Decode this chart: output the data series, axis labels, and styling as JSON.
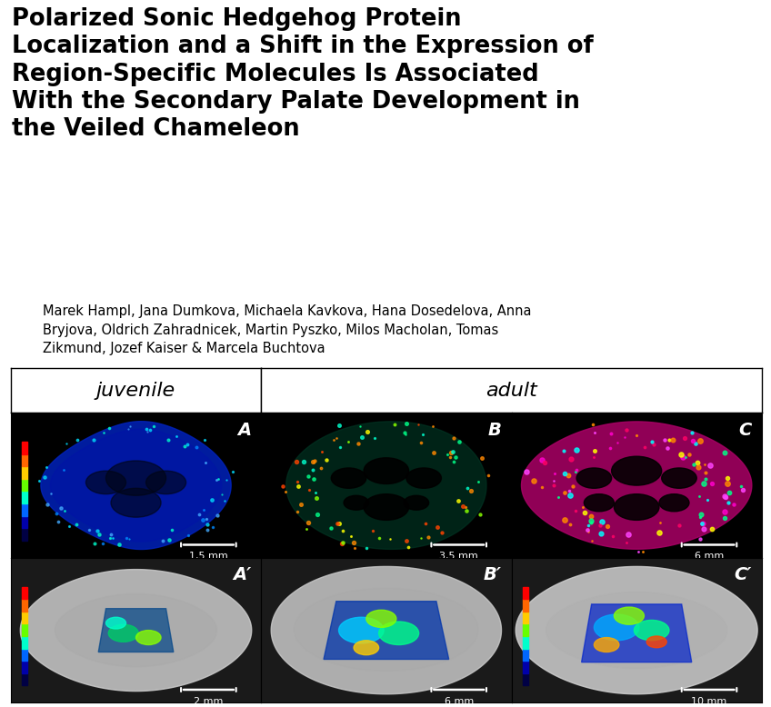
{
  "title_lines": [
    "Polarized Sonic Hedgehog Protein",
    "Localization and a Shift in the Expression of",
    "Region-Specific Molecules Is Associated",
    "With the Secondary Palate Development in",
    "the Veiled Chameleon"
  ],
  "authors_line1": "Marek Hampl, Jana Dumkova, Michaela Kavkova, Hana Dosedelova, Anna",
  "authors_line2": "Bryjova, Oldrich Zahradnicek, Martin Pyszko, Milos Macholan, Tomas",
  "authors_line3": "Zikmund, Jozef Kaiser & Marcela Buchtova",
  "col_header_left": "juvenile",
  "col_header_right": "adult",
  "panel_labels": [
    "A",
    "B",
    "C",
    "A′",
    "B′",
    "C′"
  ],
  "scale_bars": [
    "1,5 mm",
    "3,5 mm",
    "6 mm",
    "2 mm",
    "6 mm",
    "10 mm"
  ],
  "background_color": "#ffffff",
  "border_color": "#000000",
  "title_fontsize": 18.5,
  "title_fontweight": "bold",
  "authors_fontsize": 10.5,
  "header_fontsize": 16,
  "panel_label_fontsize": 14,
  "scale_bar_fontsize": 8
}
